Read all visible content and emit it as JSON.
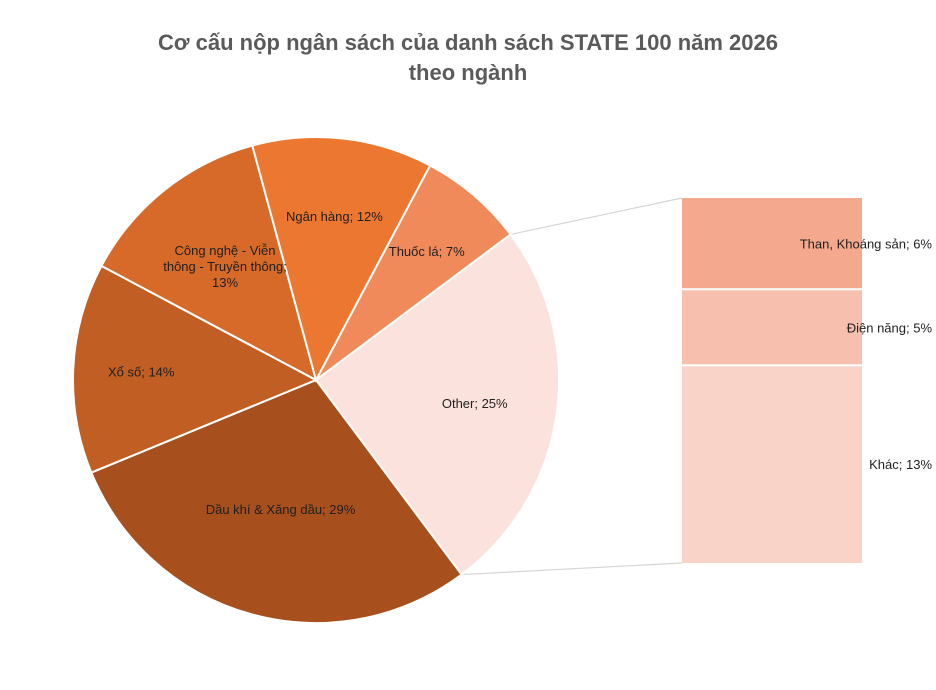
{
  "chart_data": {
    "type": "bar-of-pie",
    "title_lines": [
      "Cơ cấu nộp ngân sách của danh sách STATE 100 năm 2026",
      "theo ngành"
    ],
    "title": "Cơ cấu nộp ngân sách của danh sách STATE 100 năm 2026 theo ngành",
    "unit": "%",
    "pie": [
      {
        "name": "Thuốc lá",
        "value": 7,
        "color": "#F08A5A",
        "label_lines": [
          "Thuốc lá; 7%"
        ]
      },
      {
        "name": "Other",
        "value": 25,
        "color": "#FCE2DC",
        "label_lines": [
          "Other; 25%"
        ]
      },
      {
        "name": "Dầu khí & Xăng dầu",
        "value": 29,
        "color": "#A84F1E",
        "label_lines": [
          "Dầu khí & Xăng dầu; 29%"
        ]
      },
      {
        "name": "Xổ số",
        "value": 14,
        "color": "#C15E23",
        "label_lines": [
          "Xổ số; 14%"
        ]
      },
      {
        "name": "Công nghệ - Viễn thông - Truyền thông",
        "value": 13,
        "color": "#D76A29",
        "label_lines": [
          "Công nghệ - Viễn",
          "thông - Truyền thông;",
          "13%"
        ]
      },
      {
        "name": "Ngân hàng",
        "value": 12,
        "color": "#EC7731",
        "label_lines": [
          "Ngân hàng; 12%"
        ]
      }
    ],
    "bar": [
      {
        "name": "Than, Khoáng sản",
        "value": 6,
        "color": "#F4A88D",
        "label_lines": [
          "Than, Khoáng sản; 6%"
        ]
      },
      {
        "name": "Điện năng",
        "value": 5,
        "color": "#F6BFAE",
        "label_lines": [
          "Điện năng; 5%"
        ]
      },
      {
        "name": "Khác",
        "value": 13,
        "color": "#F9D3C7",
        "label_lines": [
          "Khác; 13%"
        ]
      }
    ],
    "legend": "none",
    "grid": false
  }
}
